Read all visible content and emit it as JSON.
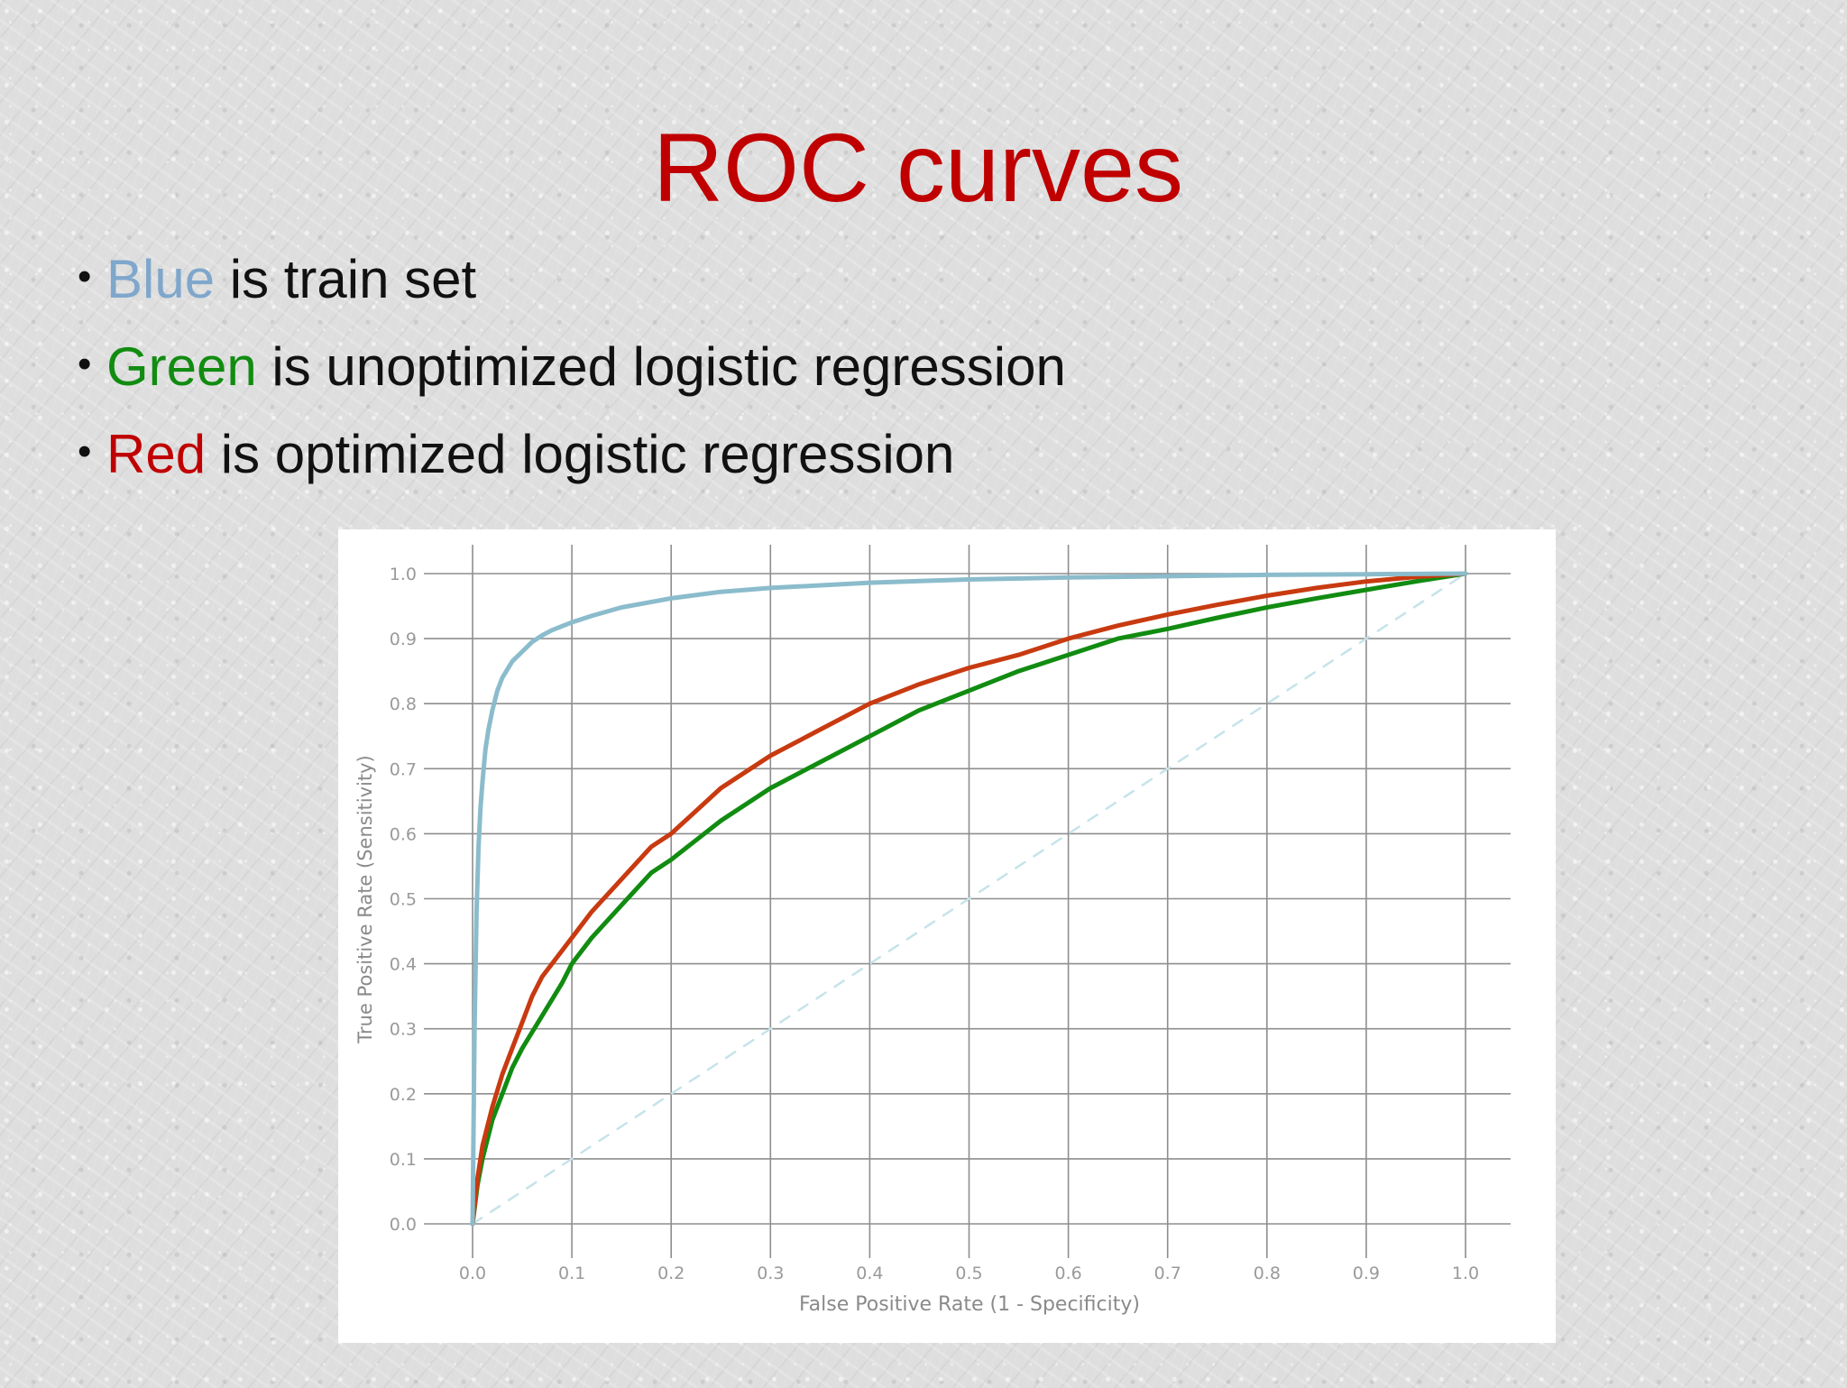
{
  "slide": {
    "title": "ROC curves",
    "bullets": [
      {
        "keyword": "Blue",
        "rest": " is train set",
        "color": "#7fa7cc"
      },
      {
        "keyword": "Green",
        "rest": " is unoptimized logistic regression",
        "color": "#118c11"
      },
      {
        "keyword": "Red",
        "rest": " is optimized logistic regression",
        "color": "#c00000"
      }
    ]
  },
  "chart_data": {
    "type": "line",
    "title": "",
    "xlabel": "False Positive Rate (1 - Specificity)",
    "ylabel": "True Positive Rate (Sensitivity)",
    "xlim": [
      0,
      1
    ],
    "ylim": [
      0,
      1
    ],
    "grid": true,
    "x_ticks": [
      "0.0",
      "0.1",
      "0.2",
      "0.3",
      "0.4",
      "0.5",
      "0.6",
      "0.7",
      "0.8",
      "0.9",
      "1.0"
    ],
    "y_ticks": [
      "0.0",
      "0.1",
      "0.2",
      "0.3",
      "0.4",
      "0.5",
      "0.6",
      "0.7",
      "0.8",
      "0.9",
      "1.0"
    ],
    "series": [
      {
        "color": "#8bbccc",
        "x": [
          0,
          0.002,
          0.004,
          0.006,
          0.008,
          0.01,
          0.013,
          0.016,
          0.02,
          0.025,
          0.03,
          0.04,
          0.05,
          0.06,
          0.07,
          0.08,
          0.1,
          0.12,
          0.15,
          0.2,
          0.25,
          0.3,
          0.4,
          0.5,
          0.6,
          0.7,
          0.8,
          0.9,
          1.0
        ],
        "y": [
          0,
          0.3,
          0.48,
          0.58,
          0.64,
          0.68,
          0.73,
          0.76,
          0.79,
          0.82,
          0.84,
          0.865,
          0.88,
          0.895,
          0.905,
          0.913,
          0.925,
          0.935,
          0.948,
          0.962,
          0.972,
          0.978,
          0.986,
          0.991,
          0.994,
          0.996,
          0.998,
          0.999,
          1.0
        ]
      },
      {
        "color": "#118c11",
        "x": [
          0,
          0.005,
          0.01,
          0.02,
          0.03,
          0.04,
          0.05,
          0.07,
          0.09,
          0.1,
          0.12,
          0.15,
          0.18,
          0.2,
          0.25,
          0.3,
          0.35,
          0.4,
          0.45,
          0.5,
          0.55,
          0.6,
          0.65,
          0.7,
          0.75,
          0.8,
          0.85,
          0.9,
          0.95,
          1.0
        ],
        "y": [
          0,
          0.06,
          0.1,
          0.16,
          0.2,
          0.24,
          0.27,
          0.32,
          0.37,
          0.4,
          0.44,
          0.49,
          0.54,
          0.56,
          0.62,
          0.67,
          0.71,
          0.75,
          0.79,
          0.82,
          0.85,
          0.875,
          0.9,
          0.915,
          0.932,
          0.948,
          0.962,
          0.975,
          0.988,
          1.0
        ]
      },
      {
        "color": "#c83a10",
        "x": [
          0,
          0.005,
          0.01,
          0.02,
          0.03,
          0.04,
          0.05,
          0.06,
          0.07,
          0.08,
          0.1,
          0.12,
          0.15,
          0.18,
          0.2,
          0.25,
          0.3,
          0.35,
          0.4,
          0.45,
          0.5,
          0.55,
          0.6,
          0.65,
          0.7,
          0.75,
          0.8,
          0.85,
          0.9,
          0.95,
          1.0
        ],
        "y": [
          0,
          0.07,
          0.12,
          0.18,
          0.23,
          0.27,
          0.31,
          0.35,
          0.38,
          0.4,
          0.44,
          0.48,
          0.53,
          0.58,
          0.6,
          0.67,
          0.72,
          0.76,
          0.8,
          0.83,
          0.855,
          0.875,
          0.9,
          0.92,
          0.937,
          0.952,
          0.966,
          0.978,
          0.988,
          0.995,
          1.0
        ]
      },
      {
        "color": "#c6e3ea",
        "dash": true,
        "x": [
          0,
          1
        ],
        "y": [
          0,
          1
        ]
      }
    ]
  }
}
